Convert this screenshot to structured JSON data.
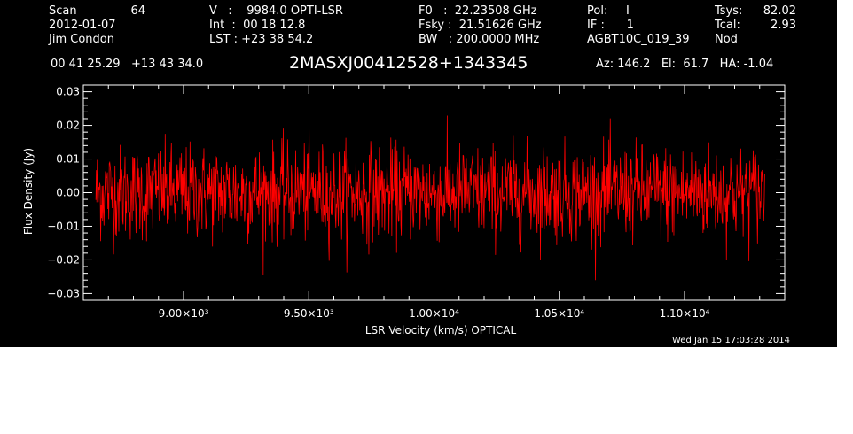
{
  "header": {
    "scan_label": "Scan",
    "scan_value": "64",
    "date": "2012-01-07",
    "observer": "Jim Condon",
    "velocity": "V   :    9984.0 OPTI-LSR",
    "int_time": "Int  :  00 18 12.8",
    "lst": "LST : +23 38 54.2",
    "f0": "F0   :  22.23508 GHz",
    "fsky": "Fsky :  21.51626 GHz",
    "bw": "BW   : 200.0000 MHz",
    "pol": "Pol:     I",
    "if": "IF :      1",
    "project": "AGBT10C_019_39",
    "tsys_label": "Tsys:",
    "tsys_value": "82.02",
    "tcal_label": "Tcal:",
    "tcal_value": "2.93",
    "mode": "Nod",
    "coords": "00 41 25.29   +13 43 34.0",
    "source": "2MASXJ00412528+1343345",
    "azelha": "Az: 146.2   El:  61.7   HA: -1.04",
    "timestamp": "Wed Jan 15 17:03:28 2014"
  },
  "chart_data": {
    "type": "line",
    "xlabel": "LSR Velocity (km/s) OPTICAL",
    "ylabel": "Flux Density (Jy)",
    "xlim": [
      8600,
      11400
    ],
    "ylim": [
      -0.032,
      0.032
    ],
    "x_range_data": [
      8650,
      11320
    ],
    "x_ticks": [
      {
        "value": 9000,
        "label": "9.00×10³"
      },
      {
        "value": 9500,
        "label": "9.50×10³"
      },
      {
        "value": 10000,
        "label": "1.00×10⁴"
      },
      {
        "value": 10500,
        "label": "1.05×10⁴"
      },
      {
        "value": 11000,
        "label": "1.10×10⁴"
      }
    ],
    "y_ticks": [
      {
        "value": 0.03,
        "label": "0.03"
      },
      {
        "value": 0.02,
        "label": "0.02"
      },
      {
        "value": 0.01,
        "label": "0.01"
      },
      {
        "value": 0.0,
        "label": "0.00"
      },
      {
        "value": -0.01,
        "label": "−0.01"
      },
      {
        "value": -0.02,
        "label": "−0.02"
      },
      {
        "value": -0.03,
        "label": "−0.03"
      }
    ],
    "series": [
      {
        "color": "#ff0000",
        "description": "noise spectrum, rms about 0.007 Jy, peaks near +/-0.025 Jy",
        "mean": 0.0,
        "rms": 0.007,
        "n_points": 1400
      }
    ],
    "grid": false
  }
}
